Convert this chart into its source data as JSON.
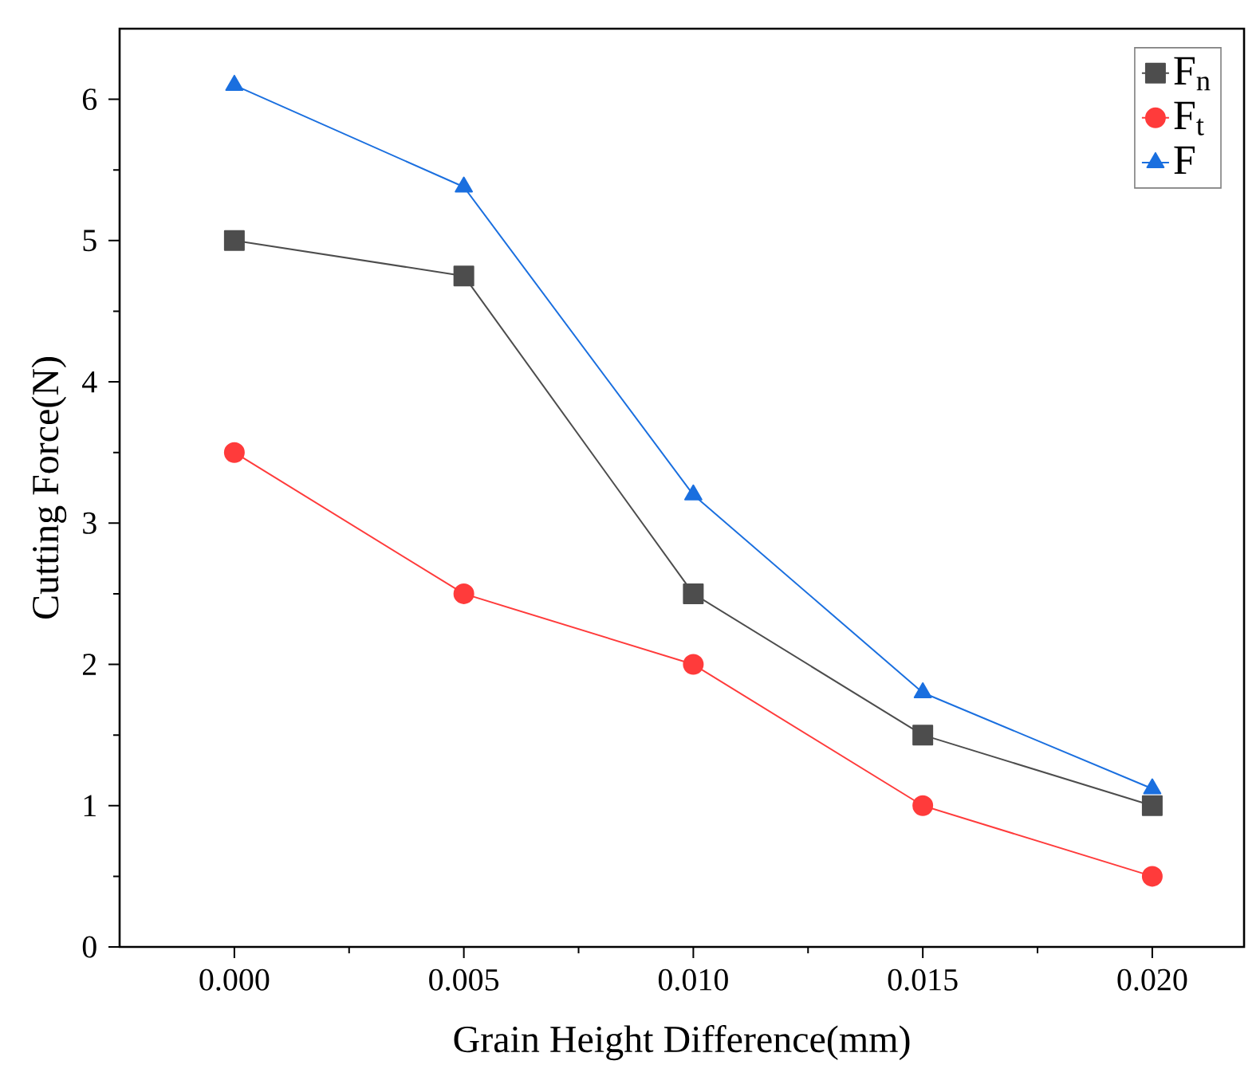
{
  "chart_data": {
    "type": "line",
    "xlabel": "Grain Height Difference(mm)",
    "ylabel": "Cutting Force(N)",
    "x": [
      0,
      0.005,
      0.01,
      0.015,
      0.02
    ],
    "series": [
      {
        "name": "F$_{n}$",
        "color": "#4d4d4d",
        "marker": "square",
        "values": [
          5,
          4.75,
          2.5,
          1.5,
          1
        ]
      },
      {
        "name": "F$_{t}$",
        "color": "#ff3b3b",
        "marker": "circle",
        "values": [
          3.5,
          2.5,
          2,
          1,
          0.5
        ]
      },
      {
        "name": "F",
        "color": "#1a6fdf",
        "marker": "triangle",
        "values": [
          6.1,
          5.38,
          3.2,
          1.8,
          1.12
        ]
      }
    ],
    "xlim": [
      -0.0025,
      0.022
    ],
    "ylim": [
      0,
      6.5
    ],
    "xticks": [
      {
        "value": 0,
        "label": "0.000"
      },
      {
        "value": 0.005,
        "label": "0.005"
      },
      {
        "value": 0.01,
        "label": "0.010"
      },
      {
        "value": 0.015,
        "label": "0.015"
      },
      {
        "value": 0.02,
        "label": "0.020"
      }
    ],
    "yticks": [
      0,
      1,
      2,
      3,
      4,
      5,
      6
    ],
    "legend": "top right",
    "grid": false,
    "line_style": "solid"
  }
}
